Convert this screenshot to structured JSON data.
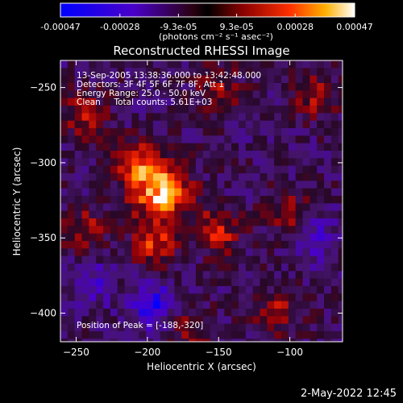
{
  "chart_data": {
    "type": "heatmap",
    "title": "Reconstructed RHESSI Image",
    "xlabel": "Heliocentric X (arcsec)",
    "ylabel": "Heliocentric Y (arcsec)",
    "xlim": [
      -261,
      -63
    ],
    "ylim": [
      -419,
      -232
    ],
    "x_ticks": [
      -250,
      -200,
      -150,
      -100
    ],
    "y_ticks": [
      -250,
      -300,
      -350,
      -400
    ],
    "colorbar": {
      "ticks": [
        "-0.00047",
        "-0.00028",
        "-9.3e-05",
        "9.3e-05",
        "0.00028",
        "0.00047"
      ],
      "tick_values": [
        -0.00047,
        -0.00028,
        -9.3e-05,
        9.3e-05,
        0.00028,
        0.00047
      ],
      "unit_label": "(photons cm⁻² s⁻¹ asec⁻²)",
      "range": [
        -0.00047,
        0.00047
      ]
    },
    "annotations": [
      "13-Sep-2005 13:38:36.000 to 13:42:48.000",
      "Detectors: 3F 4F 5F 6F 7F 8F, Att 1",
      "Energy Range: 25.0 - 50.0 keV",
      "Clean     Total counts: 5.61E+03"
    ],
    "peak_label": "Position of Peak = [-188,-320]",
    "peak": [
      -188,
      -320
    ],
    "hotspots": [
      {
        "x": -190,
        "y": -320,
        "value": 0.00047
      },
      {
        "x": -210,
        "y": -300,
        "value": 0.0003
      },
      {
        "x": -195,
        "y": -355,
        "value": 0.00028
      },
      {
        "x": -150,
        "y": -345,
        "value": 0.00026
      },
      {
        "x": -245,
        "y": -268,
        "value": 0.00022
      },
      {
        "x": -150,
        "y": -250,
        "value": 0.0002
      },
      {
        "x": -100,
        "y": -335,
        "value": 0.00022
      },
      {
        "x": -82,
        "y": -255,
        "value": 0.0002
      },
      {
        "x": -245,
        "y": -345,
        "value": 0.00022
      },
      {
        "x": -170,
        "y": -410,
        "value": 0.00018
      },
      {
        "x": -110,
        "y": -400,
        "value": 0.0002
      }
    ],
    "coldspots": [
      {
        "x": -195,
        "y": -395,
        "value": -0.00028
      },
      {
        "x": -85,
        "y": -350,
        "value": -0.0002
      },
      {
        "x": -240,
        "y": -380,
        "value": -0.00018
      }
    ]
  },
  "footer": {
    "timestamp": "2-May-2022 12:45"
  }
}
